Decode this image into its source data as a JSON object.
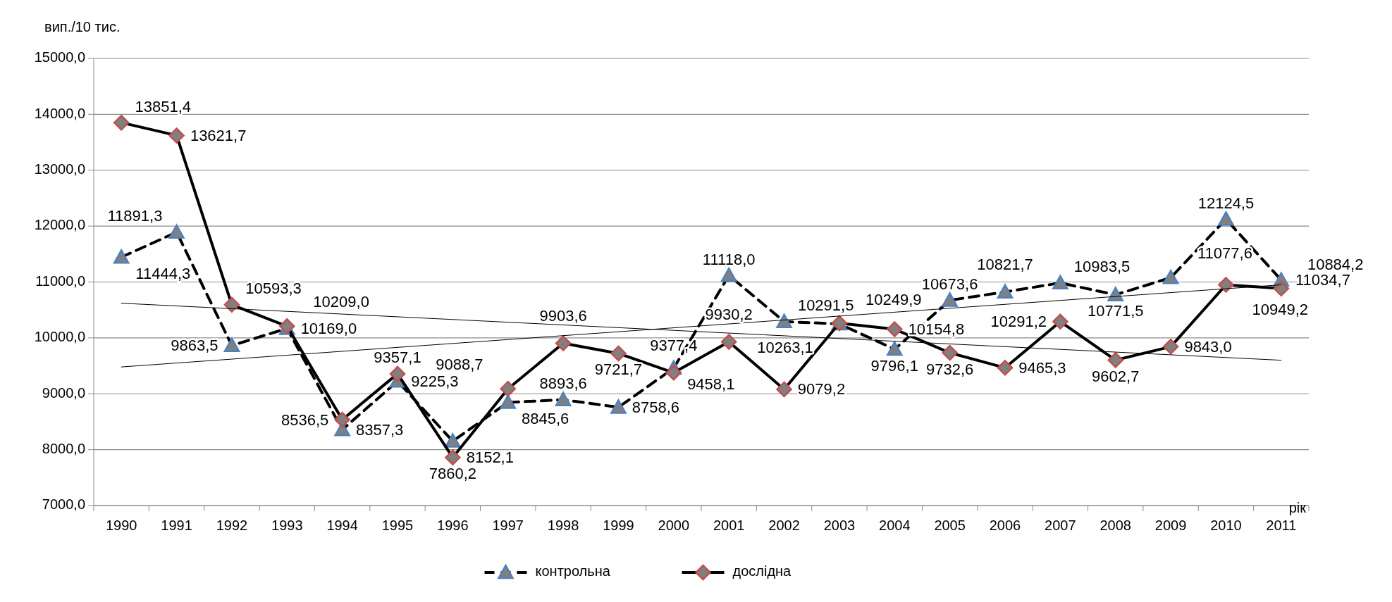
{
  "chart_data": {
    "type": "line",
    "ylabel": "вип./10 тис.",
    "xlabel": "рік",
    "categories": [
      "1990",
      "1991",
      "1992",
      "1993",
      "1994",
      "1995",
      "1996",
      "1997",
      "1998",
      "1999",
      "2000",
      "2001",
      "2002",
      "2003",
      "2004",
      "2005",
      "2006",
      "2007",
      "2008",
      "2009",
      "2010",
      "2011"
    ],
    "series": [
      {
        "name": "контрольна",
        "color": "#000000",
        "marker": "triangle",
        "line_style": "dashed",
        "values": [
          11444.3,
          11891.3,
          9863.5,
          10169.0,
          8357.3,
          9225.3,
          8152.1,
          8845.6,
          8893.6,
          8758.6,
          9458.1,
          11118.0,
          10291.5,
          10249.9,
          9796.1,
          10673.6,
          10821.7,
          10983.5,
          10771.5,
          11077.6,
          12124.5,
          11034.7
        ],
        "value_labels": [
          "11444,3",
          "11891,3",
          "9863,5",
          "10169,0",
          "8357,3",
          "9225,3",
          "8152,1",
          "8845,6",
          "8893,6",
          "8758,6",
          "9458,1",
          "11118,0",
          "10291,5",
          "10249,9",
          "9796,1",
          "10673,6",
          "10821,7",
          "10983,5",
          "10771,5",
          "11077,6",
          "12124,5",
          "11034,7"
        ]
      },
      {
        "name": "дослідна",
        "color": "#000000",
        "marker": "diamond",
        "line_style": "solid",
        "values": [
          13851.4,
          13621.7,
          10593.3,
          10209.0,
          8536.5,
          9357.1,
          7860.2,
          9088.7,
          9903.6,
          9721.7,
          9377.4,
          9930.2,
          9079.2,
          10263.1,
          10154.8,
          9732.6,
          9465.3,
          10291.2,
          9602.7,
          9843.0,
          10949.2,
          10884.2
        ],
        "value_labels": [
          "13851,4",
          "13621,7",
          "10593,3",
          "10209,0",
          "8536,5",
          "9357,1",
          "7860,2",
          "9088,7",
          "9903,6",
          "9721,7",
          "9377,4",
          "9930,2",
          "9079,2",
          "10263,1",
          "10154,8",
          "9732,6",
          "9465,3",
          "10291,2",
          "9602,7",
          "9843,0",
          "10949,2",
          "10884,2"
        ]
      },
      {
        "color": "#000000",
        "marker": "none",
        "line_style": "solid",
        "values": [
          9480,
          null,
          null,
          null,
          null,
          null,
          null,
          null,
          null,
          null,
          null,
          null,
          null,
          null,
          null,
          null,
          null,
          null,
          null,
          null,
          null,
          10950
        ]
      },
      {
        "color": "#000000",
        "marker": "none",
        "line_style": "solid",
        "values": [
          10620,
          null,
          null,
          null,
          null,
          null,
          null,
          null,
          null,
          null,
          null,
          null,
          null,
          null,
          null,
          null,
          null,
          null,
          null,
          null,
          null,
          9600
        ]
      }
    ],
    "ylim": [
      7000,
      15000
    ],
    "yticks": [
      {
        "value": 7000,
        "label": "7000,0"
      },
      {
        "value": 8000,
        "label": "8000,0"
      },
      {
        "value": 9000,
        "label": "9000,0"
      },
      {
        "value": 10000,
        "label": "10000,0"
      },
      {
        "value": 11000,
        "label": "11000,0"
      },
      {
        "value": 12000,
        "label": "12000,0"
      },
      {
        "value": 13000,
        "label": "13000,0"
      },
      {
        "value": 14000,
        "label": "14000,0"
      },
      {
        "value": 15000,
        "label": "15000,0"
      }
    ],
    "grid": "y",
    "legend": "bottom"
  }
}
